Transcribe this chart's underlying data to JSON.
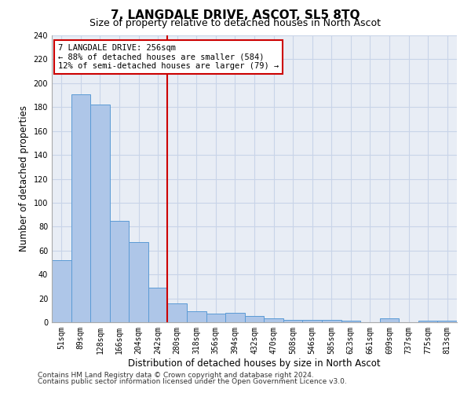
{
  "title": "7, LANGDALE DRIVE, ASCOT, SL5 8TQ",
  "subtitle": "Size of property relative to detached houses in North Ascot",
  "xlabel": "Distribution of detached houses by size in North Ascot",
  "ylabel": "Number of detached properties",
  "categories": [
    "51sqm",
    "89sqm",
    "128sqm",
    "166sqm",
    "204sqm",
    "242sqm",
    "280sqm",
    "318sqm",
    "356sqm",
    "394sqm",
    "432sqm",
    "470sqm",
    "508sqm",
    "546sqm",
    "585sqm",
    "623sqm",
    "661sqm",
    "699sqm",
    "737sqm",
    "775sqm",
    "813sqm"
  ],
  "values": [
    52,
    191,
    182,
    85,
    67,
    29,
    16,
    9,
    7,
    8,
    5,
    3,
    2,
    2,
    2,
    1,
    0,
    3,
    0,
    1,
    1
  ],
  "bar_color": "#aec6e8",
  "bar_edge_color": "#5b9bd5",
  "vline_x": 5.5,
  "vline_color": "#cc0000",
  "annotation_text": "7 LANGDALE DRIVE: 256sqm\n← 88% of detached houses are smaller (584)\n12% of semi-detached houses are larger (79) →",
  "annotation_box_color": "#ffffff",
  "annotation_box_edge_color": "#cc0000",
  "ylim": [
    0,
    240
  ],
  "yticks": [
    0,
    20,
    40,
    60,
    80,
    100,
    120,
    140,
    160,
    180,
    200,
    220,
    240
  ],
  "grid_color": "#c8d4e8",
  "bg_color": "#e8edf5",
  "footer_line1": "Contains HM Land Registry data © Crown copyright and database right 2024.",
  "footer_line2": "Contains public sector information licensed under the Open Government Licence v3.0.",
  "title_fontsize": 11,
  "subtitle_fontsize": 9,
  "xlabel_fontsize": 8.5,
  "ylabel_fontsize": 8.5,
  "tick_fontsize": 7,
  "annotation_fontsize": 7.5,
  "footer_fontsize": 6.5
}
